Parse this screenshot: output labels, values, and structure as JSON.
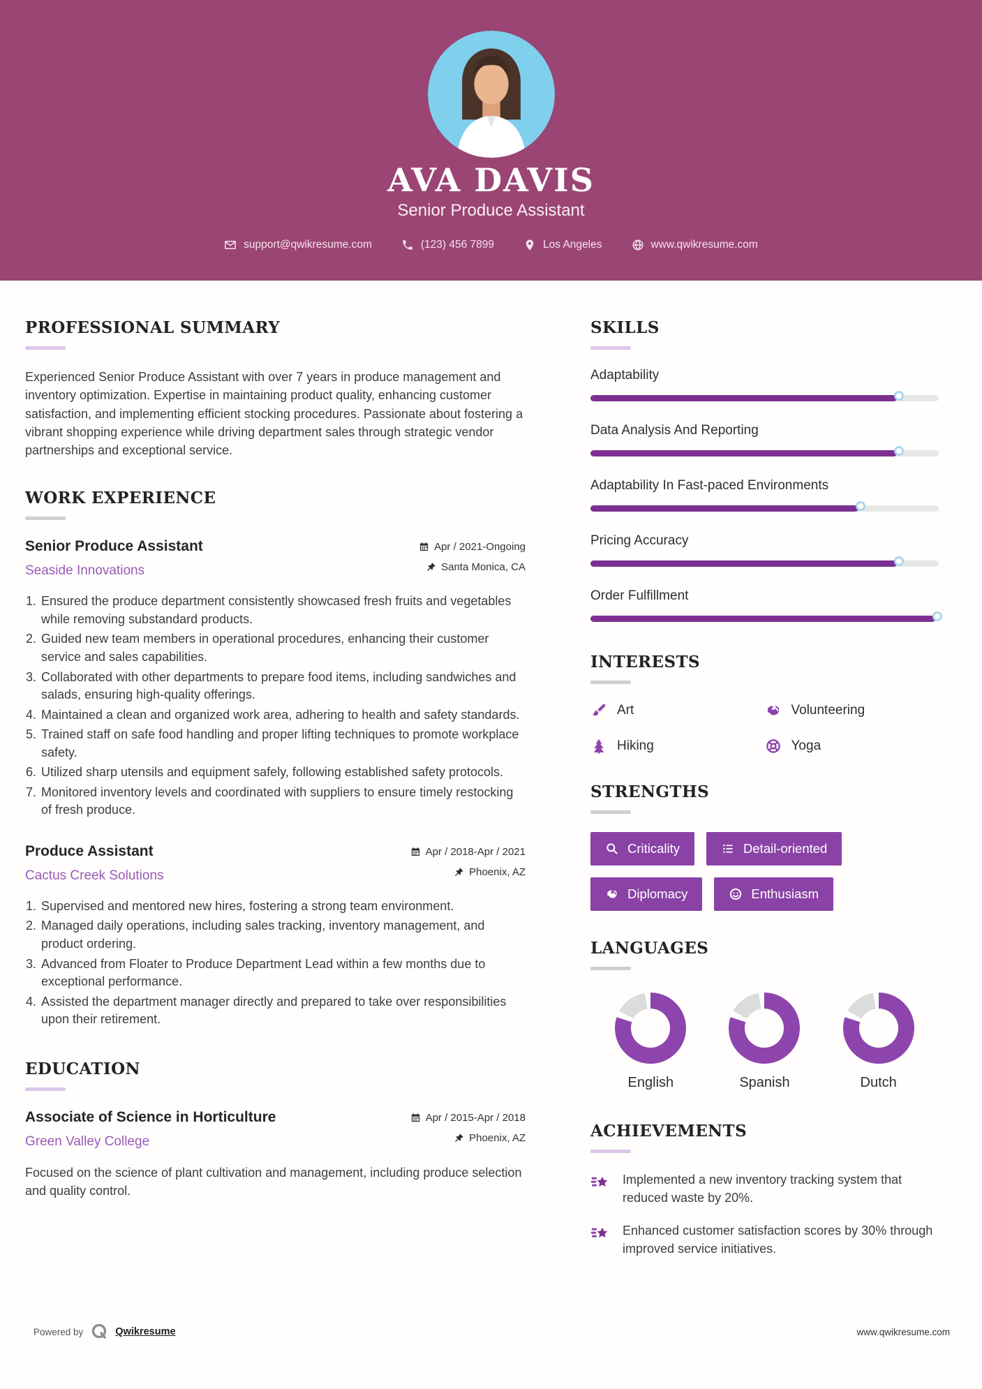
{
  "colors": {
    "header_bg": "#9a4573",
    "accent_purple": "#8e44ad",
    "bar_fill": "#7d3092",
    "bar_track": "#e7e7e7",
    "button_bg": "#8a42a6",
    "company_link": "#9b59b6",
    "knob_ring": "#a9d7ee",
    "donut_gray": "#dcdcdc"
  },
  "header": {
    "name": "AVA DAVIS",
    "title": "Senior Produce Assistant",
    "contact": {
      "email": "support@qwikresume.com",
      "phone": "(123) 456 7899",
      "location": "Los Angeles",
      "website": "www.qwikresume.com"
    }
  },
  "summary": {
    "heading": "PROFESSIONAL SUMMARY",
    "text": "Experienced Senior Produce Assistant with over 7 years in produce management and inventory optimization. Expertise in maintaining product quality, enhancing customer satisfaction, and implementing efficient stocking procedures. Passionate about fostering a vibrant shopping experience while driving department sales through strategic vendor partnerships and exceptional service."
  },
  "work": {
    "heading": "WORK EXPERIENCE",
    "jobs": [
      {
        "title": "Senior Produce Assistant",
        "company": "Seaside Innovations",
        "dates": "Apr / 2021-Ongoing",
        "location": "Santa Monica, CA",
        "bullets": [
          "Ensured the produce department consistently showcased fresh fruits and vegetables while removing substandard products.",
          "Guided new team members in operational procedures, enhancing their customer service and sales capabilities.",
          "Collaborated with other departments to prepare food items, including sandwiches and salads, ensuring high-quality offerings.",
          "Maintained a clean and organized work area, adhering to health and safety standards.",
          "Trained staff on safe food handling and proper lifting techniques to promote workplace safety.",
          "Utilized sharp utensils and equipment safely, following established safety protocols.",
          "Monitored inventory levels and coordinated with suppliers to ensure timely restocking of fresh produce."
        ]
      },
      {
        "title": "Produce Assistant",
        "company": "Cactus Creek Solutions",
        "dates": "Apr / 2018-Apr / 2021",
        "location": "Phoenix, AZ",
        "bullets": [
          "Supervised and mentored new hires, fostering a strong team environment.",
          "Managed daily operations, including sales tracking, inventory management, and product ordering.",
          "Advanced from Floater to Produce Department Lead within a few months due to exceptional performance.",
          "Assisted the department manager directly and prepared to take over responsibilities upon their retirement."
        ]
      }
    ]
  },
  "education": {
    "heading": "EDUCATION",
    "degree": "Associate of Science in Horticulture",
    "school": "Green Valley College",
    "dates": "Apr / 2015-Apr / 2018",
    "location": "Phoenix, AZ",
    "description": "Focused on the science of plant cultivation and management, including produce selection and quality control."
  },
  "skills": {
    "heading": "SKILLS",
    "items": [
      {
        "name": "Adaptability",
        "level": 88
      },
      {
        "name": "Data Analysis And Reporting",
        "level": 88
      },
      {
        "name": "Adaptability In Fast-paced Environments",
        "level": 77
      },
      {
        "name": "Pricing Accuracy",
        "level": 88
      },
      {
        "name": "Order Fulfillment",
        "level": 99
      }
    ]
  },
  "interests": {
    "heading": "INTERESTS",
    "items": [
      {
        "label": "Art",
        "icon": "paintbrush-icon"
      },
      {
        "label": "Volunteering",
        "icon": "handshake-icon"
      },
      {
        "label": "Hiking",
        "icon": "pine-tree-icon"
      },
      {
        "label": "Yoga",
        "icon": "lifebuoy-icon"
      }
    ]
  },
  "strengths": {
    "heading": "STRENGTHS",
    "items": [
      {
        "label": "Criticality",
        "icon": "search-icon"
      },
      {
        "label": "Detail-oriented",
        "icon": "list-icon"
      },
      {
        "label": "Diplomacy",
        "icon": "handshake-icon"
      },
      {
        "label": "Enthusiasm",
        "icon": "smiley-icon"
      }
    ]
  },
  "languages": {
    "heading": "LANGUAGES",
    "items": [
      {
        "name": "English",
        "percent": 80
      },
      {
        "name": "Spanish",
        "percent": 80
      },
      {
        "name": "Dutch",
        "percent": 80
      }
    ]
  },
  "achievements": {
    "heading": "ACHIEVEMENTS",
    "items": [
      "Implemented a new inventory tracking system that reduced waste by 20%.",
      "Enhanced customer satisfaction scores by 30% through improved service initiatives."
    ]
  },
  "footer": {
    "powered_by": "Powered by",
    "brand": "Qwikresume",
    "website": "www.qwikresume.com"
  },
  "chart_data": {
    "type": "bar",
    "title": "Skills proficiency",
    "categories": [
      "Adaptability",
      "Data Analysis And Reporting",
      "Adaptability In Fast-paced Environments",
      "Pricing Accuracy",
      "Order Fulfillment"
    ],
    "values": [
      88,
      88,
      77,
      88,
      99
    ],
    "language_donuts": {
      "categories": [
        "English",
        "Spanish",
        "Dutch"
      ],
      "values": [
        80,
        80,
        80
      ]
    }
  }
}
